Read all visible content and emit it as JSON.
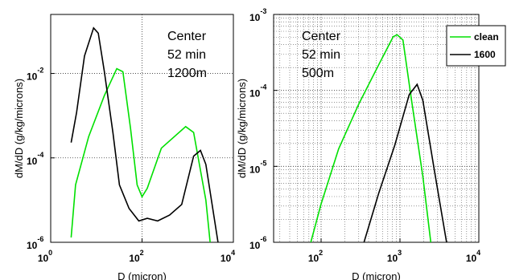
{
  "chart_data": [
    {
      "type": "line",
      "xscale": "log",
      "yscale": "log",
      "grid": "major",
      "annotation": [
        "Center",
        "52 min",
        "1200m"
      ],
      "x_label": "D (micron)",
      "y_label": "dM/dD (g/kg/microns)",
      "xlim": [
        1,
        10000
      ],
      "ylim": [
        1e-06,
        0.25
      ],
      "xticks": [
        {
          "value": 1,
          "label": "10",
          "sup": "0"
        },
        {
          "value": 100,
          "label": "10",
          "sup": "2"
        },
        {
          "value": 10000,
          "label": "10",
          "sup": "4"
        }
      ],
      "yticks": [
        {
          "value": 1e-06,
          "label": "10",
          "sup": "-6"
        },
        {
          "value": 0.0001,
          "label": "10",
          "sup": "-4"
        },
        {
          "value": 0.01,
          "label": "10",
          "sup": "-2"
        }
      ],
      "series": [
        {
          "color": "#00e000",
          "x": [
            2.8,
            3.5,
            6.8,
            15,
            28,
            38,
            56,
            78,
            100,
            130,
            265,
            900,
            1350,
            2500,
            3100
          ],
          "values": [
            1.3e-06,
            2.3e-05,
            0.00032,
            0.003,
            0.013,
            0.011,
            0.0005,
            2.3e-05,
            1.2e-05,
            1.9e-05,
            0.00017,
            0.00055,
            0.0004,
            1e-05,
            1e-06
          ]
        },
        {
          "color": "#000000",
          "x": [
            2.8,
            3.7,
            5.5,
            8.7,
            11,
            15,
            23,
            32,
            52,
            85,
            130,
            220,
            400,
            740,
            1350,
            1900,
            2500,
            4600
          ],
          "values": [
            0.00023,
            0.0012,
            0.026,
            0.12,
            0.09,
            0.011,
            0.0004,
            2.3e-05,
            6.3e-06,
            3.2e-06,
            3.7e-06,
            3.2e-06,
            4.4e-06,
            7.9e-06,
            0.00011,
            0.00015,
            7e-05,
            1e-06
          ]
        }
      ]
    },
    {
      "type": "line",
      "xscale": "log",
      "yscale": "log",
      "grid": "minor",
      "annotation": [
        "Center",
        "52 min",
        "500m"
      ],
      "x_label": "D (micron)",
      "y_label": "dM/dD (g/kg/microns)",
      "legend": "upper right",
      "xlim": [
        25,
        10000
      ],
      "ylim": [
        1e-06,
        0.001
      ],
      "xticks": [
        {
          "value": 100,
          "label": "10",
          "sup": "2"
        },
        {
          "value": 1000,
          "label": "10",
          "sup": "3"
        },
        {
          "value": 10000,
          "label": "10",
          "sup": "4"
        }
      ],
      "yticks": [
        {
          "value": 1e-06,
          "label": "10",
          "sup": "-6"
        },
        {
          "value": 1e-05,
          "label": "10",
          "sup": "-5"
        },
        {
          "value": 0.0001,
          "label": "10",
          "sup": "-4"
        },
        {
          "value": 0.001,
          "label": "10",
          "sup": "-3"
        }
      ],
      "xminor": [
        30,
        40,
        50,
        60,
        70,
        80,
        90,
        200,
        300,
        400,
        500,
        600,
        700,
        800,
        900,
        2000,
        3000,
        4000,
        5000,
        6000,
        7000,
        8000,
        9000
      ],
      "yminor": [
        2e-06,
        3e-06,
        4e-06,
        5e-06,
        6e-06,
        7e-06,
        8e-06,
        9e-06,
        2e-05,
        3e-05,
        4e-05,
        5e-05,
        6e-05,
        7e-05,
        8e-05,
        9e-05,
        0.0002,
        0.0003,
        0.0004,
        0.0005,
        0.0006,
        0.0007,
        0.0008,
        0.0009
      ],
      "series": [
        {
          "name": "clean",
          "color": "#00e000",
          "x": [
            74,
            100,
            167,
            300,
            540,
            820,
            920,
            1090,
            1380,
            1950,
            2460
          ],
          "values": [
            1e-06,
            3.2e-06,
            1.7e-05,
            6.6e-05,
            0.00022,
            0.00051,
            0.00054,
            0.00046,
            8.3e-05,
            7.4e-06,
            1e-06
          ]
        },
        {
          "name": "1600",
          "color": "#000000",
          "x": [
            350,
            540,
            860,
            1310,
            1650,
            1950,
            2750,
            3900
          ],
          "values": [
            1e-06,
            4.5e-06,
            1.9e-05,
            8.8e-05,
            0.00012,
            7.4e-05,
            8.4e-06,
            1e-06
          ]
        }
      ]
    }
  ]
}
